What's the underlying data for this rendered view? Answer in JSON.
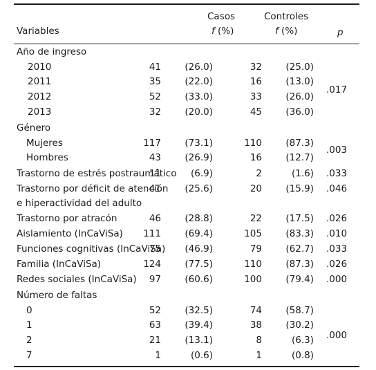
{
  "header": {
    "variables": "Variables",
    "casos": "Casos",
    "controles": "Controles",
    "casos_sub_f": "f",
    "casos_sub_pct": " (%)",
    "controles_sub_f": "f",
    "controles_sub_pct": " (%)",
    "p": "p"
  },
  "rows": [
    {
      "label": "Año de ingreso",
      "indent": 0,
      "cn": "",
      "cp": "",
      "kn": "",
      "kp": "",
      "p": ""
    },
    {
      "label": "2010",
      "indent": 1,
      "cn": "41",
      "cp": "(26.0)",
      "kn": "32",
      "kp": "(25.0)",
      "p": ""
    },
    {
      "label": "2011",
      "indent": 1,
      "cn": "35",
      "cp": "(22.0)",
      "kn": "16",
      "kp": "(13.0)",
      "p": ""
    },
    {
      "label": "2012",
      "indent": 1,
      "cn": "52",
      "cp": "(33.0)",
      "kn": "33",
      "kp": "(26.0)",
      "p": ""
    },
    {
      "label": "2013",
      "indent": 1,
      "cn": "32",
      "cp": "(20.0)",
      "kn": "45",
      "kp": "(36.0)",
      "p": ""
    },
    {
      "label": "Género",
      "indent": 0,
      "cn": "",
      "cp": "",
      "kn": "",
      "kp": "",
      "p": ""
    },
    {
      "label": "Mujeres",
      "indent": 2,
      "cn": "117",
      "cp": "(73.1)",
      "kn": "110",
      "kp": "(87.3)",
      "p": ""
    },
    {
      "label": "Hombres",
      "indent": 2,
      "cn": "43",
      "cp": "(26.9)",
      "kn": "16",
      "kp": "(12.7)",
      "p": ""
    },
    {
      "label": "Trastorno de estrés postraumático",
      "indent": 0,
      "cn": "11",
      "cp": "(6.9)",
      "kn": "2",
      "kp": "(1.6)",
      "p": ".033"
    },
    {
      "label": "Trastorno por déficit de atención",
      "indent": 0,
      "cn": "41",
      "cp": "(25.6)",
      "kn": "20",
      "kp": "(15.9)",
      "p": ".046"
    },
    {
      "label": "e hiperactividad del adulto",
      "indent": 0,
      "cn": "",
      "cp": "",
      "kn": "",
      "kp": "",
      "p": ""
    },
    {
      "label": "Trastorno por atracón",
      "indent": 0,
      "cn": "46",
      "cp": "(28.8)",
      "kn": "22",
      "kp": "(17.5)",
      "p": ".026"
    },
    {
      "label": "Aislamiento (InCaViSa)",
      "indent": 0,
      "cn": "111",
      "cp": "(69.4)",
      "kn": "105",
      "kp": "(83.3)",
      "p": ".010"
    },
    {
      "label": "Funciones cognitivas (InCaViSa)",
      "indent": 0,
      "cn": "75",
      "cp": "(46.9)",
      "kn": "79",
      "kp": "(62.7)",
      "p": ".033"
    },
    {
      "label": "Familia (InCaViSa)",
      "indent": 0,
      "cn": "124",
      "cp": "(77.5)",
      "kn": "110",
      "kp": "(87.3)",
      "p": ".026"
    },
    {
      "label": "Redes sociales (InCaViSa)",
      "indent": 0,
      "cn": "97",
      "cp": "(60.6)",
      "kn": "100",
      "kp": "(79.4)",
      "p": ".000"
    },
    {
      "label": "Número de faltas",
      "indent": 0,
      "cn": "",
      "cp": "",
      "kn": "",
      "kp": "",
      "p": ""
    },
    {
      "label": "0",
      "indent": 2,
      "cn": "52",
      "cp": "(32.5)",
      "kn": "74",
      "kp": "(58.7)",
      "p": ""
    },
    {
      "label": "1",
      "indent": 2,
      "cn": "63",
      "cp": "(39.4)",
      "kn": "38",
      "kp": "(30.2)",
      "p": ""
    },
    {
      "label": "2",
      "indent": 2,
      "cn": "21",
      "cp": "(13.1)",
      "kn": "8",
      "kp": "(6.3)",
      "p": ""
    },
    {
      "label": "7",
      "indent": 2,
      "cn": "1",
      "cp": "(0.6)",
      "kn": "1",
      "kp": "(0.8)",
      "p": ""
    }
  ],
  "group_p": {
    "anio": ".017",
    "genero": ".003",
    "faltas": ".000"
  }
}
